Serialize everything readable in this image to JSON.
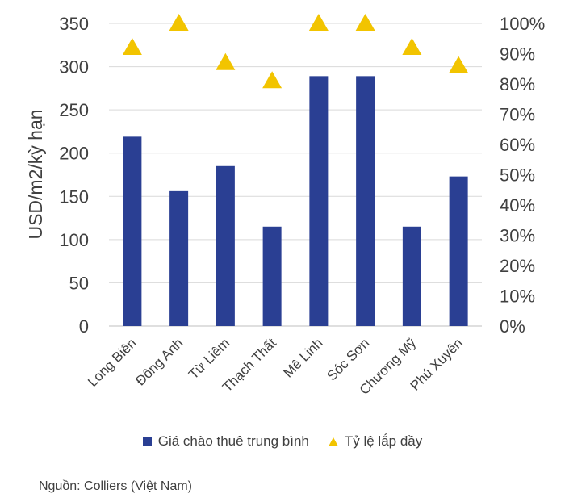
{
  "chart_data": {
    "type": "bar",
    "categories": [
      "Long Biên",
      "Đông Anh",
      "Từ Liêm",
      "Thạch Thất",
      "Mê Linh",
      "Sóc Sơn",
      "Chương Mỹ",
      "Phú Xuyên"
    ],
    "series": [
      {
        "name": "Giá chào thuê trung bình",
        "type": "bar",
        "axis": "left",
        "color": "#2a3f93",
        "values": [
          219,
          156,
          185,
          115,
          289,
          289,
          115,
          173
        ]
      },
      {
        "name": "Tỷ lệ lắp đầy",
        "type": "scatter",
        "marker": "triangle",
        "axis": "right",
        "color": "#f2c400",
        "values": [
          0.92,
          1.0,
          0.87,
          0.81,
          1.0,
          1.0,
          0.92,
          0.86
        ]
      }
    ],
    "ylabel": "USD/m2/kỳ hạn",
    "ylim": [
      0,
      350
    ],
    "yticks": [
      "0",
      "50",
      "100",
      "150",
      "200",
      "250",
      "300",
      "350"
    ],
    "y2lim": [
      0,
      1
    ],
    "y2ticks": [
      "0%",
      "10%",
      "20%",
      "30%",
      "40%",
      "50%",
      "60%",
      "70%",
      "80%",
      "90%",
      "100%"
    ],
    "grid": true,
    "legend_position": "bottom"
  },
  "legend": {
    "bar_label": "Giá chào thuê trung bình",
    "marker_label": "Tỷ lệ lắp đầy"
  },
  "source": "Nguồn: Colliers (Việt Nam)"
}
